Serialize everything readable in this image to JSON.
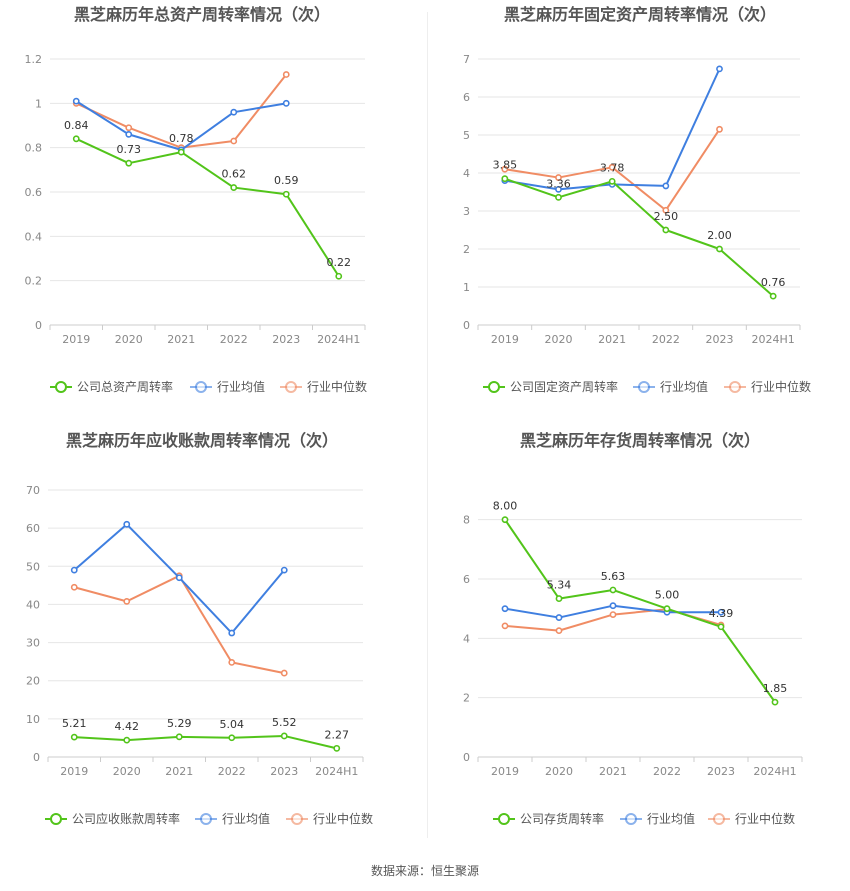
{
  "colors": {
    "company": "#52c41a",
    "industry_avg": "#3f7fe0",
    "industry_median": "#f08c64"
  },
  "legend_common": [
    "行业均值",
    "行业中位数"
  ],
  "source_text": "数据来源：恒生聚源",
  "chart_data": [
    {
      "type": "line",
      "title": "黑芝麻历年总资产周转率情况（次）",
      "categories": [
        "2019",
        "2020",
        "2021",
        "2022",
        "2023",
        "2024H1"
      ],
      "ylim": [
        0,
        1.2
      ],
      "yticks": [
        "0",
        "0.2",
        "0.4",
        "0.6",
        "0.8",
        "1",
        "1.2"
      ],
      "series": [
        {
          "name": "公司总资产周转率",
          "values": [
            0.84,
            0.73,
            0.78,
            0.62,
            0.59,
            0.22
          ],
          "labels": [
            "0.84",
            "0.73",
            "0.78",
            "0.62",
            "0.59",
            "0.22"
          ]
        },
        {
          "name": "行业均值",
          "values": [
            1.01,
            0.86,
            0.79,
            0.96,
            1.0,
            null
          ]
        },
        {
          "name": "行业中位数",
          "values": [
            1.0,
            0.89,
            0.8,
            0.83,
            1.13,
            null
          ]
        }
      ]
    },
    {
      "type": "line",
      "title": "黑芝麻历年固定资产周转率情况（次）",
      "categories": [
        "2019",
        "2020",
        "2021",
        "2022",
        "2023",
        "2024H1"
      ],
      "ylim": [
        0,
        7
      ],
      "yticks": [
        "0",
        "1",
        "2",
        "3",
        "4",
        "5",
        "6",
        "7"
      ],
      "series": [
        {
          "name": "公司固定资产周转率",
          "values": [
            3.85,
            3.36,
            3.78,
            2.5,
            2.0,
            0.76
          ],
          "labels": [
            "3.85",
            "3.36",
            "3.78",
            "2.50",
            "2.00",
            "0.76"
          ]
        },
        {
          "name": "行业均值",
          "values": [
            3.8,
            3.57,
            3.7,
            3.66,
            6.74,
            null
          ]
        },
        {
          "name": "行业中位数",
          "values": [
            4.1,
            3.88,
            4.15,
            3.02,
            5.15,
            null
          ]
        }
      ]
    },
    {
      "type": "line",
      "title": "黑芝麻历年应收账款周转率情况（次）",
      "categories": [
        "2019",
        "2020",
        "2021",
        "2022",
        "2023",
        "2024H1"
      ],
      "ylim": [
        0,
        70
      ],
      "yticks": [
        "0",
        "10",
        "20",
        "30",
        "40",
        "50",
        "60",
        "70"
      ],
      "series": [
        {
          "name": "公司应收账款周转率",
          "values": [
            5.21,
            4.42,
            5.29,
            5.04,
            5.52,
            2.27
          ],
          "labels": [
            "5.21",
            "4.42",
            "5.29",
            "5.04",
            "5.52",
            "2.27"
          ]
        },
        {
          "name": "行业均值",
          "values": [
            49.0,
            61.0,
            47.0,
            32.5,
            49.0,
            null
          ]
        },
        {
          "name": "行业中位数",
          "values": [
            44.5,
            40.8,
            47.5,
            24.8,
            22.0,
            null
          ]
        }
      ]
    },
    {
      "type": "line",
      "title": "黑芝麻历年存货周转率情况（次）",
      "categories": [
        "2019",
        "2020",
        "2021",
        "2022",
        "2023",
        "2024H1"
      ],
      "ylim": [
        0,
        9
      ],
      "yticks": [
        "0",
        "2",
        "4",
        "6",
        "8"
      ],
      "series": [
        {
          "name": "公司存货周转率",
          "values": [
            8.0,
            5.34,
            5.63,
            5.0,
            4.39,
            1.85
          ],
          "labels": [
            "8.00",
            "5.34",
            "5.63",
            "5.00",
            "4.39",
            "1.85"
          ]
        },
        {
          "name": "行业均值",
          "values": [
            5.0,
            4.7,
            5.1,
            4.88,
            4.88,
            null
          ]
        },
        {
          "name": "行业中位数",
          "values": [
            4.42,
            4.26,
            4.8,
            4.98,
            4.45,
            null
          ]
        }
      ]
    }
  ]
}
